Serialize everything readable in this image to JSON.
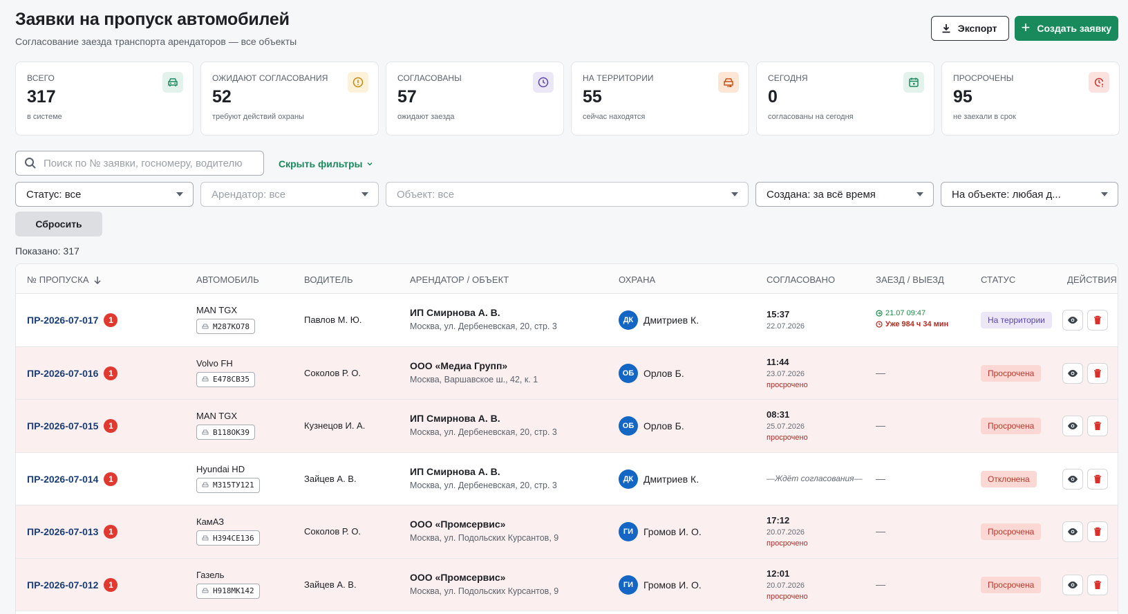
{
  "header": {
    "title": "Заявки на пропуск автомобилей",
    "subtitle": "Согласование заезда транспорта арендаторов — все объекты",
    "export_label": "Экспорт",
    "create_label": "Создать заявку"
  },
  "stats": [
    {
      "label": "Всего",
      "value": "317",
      "note": "в системе",
      "icon": "car-icon",
      "color": "#1d8a5c",
      "bg": "#e3f3ec"
    },
    {
      "label": "Ожидают согласования",
      "value": "52",
      "note": "требуют действий охраны",
      "icon": "alert-icon",
      "color": "#c48a12",
      "bg": "#fcf1d9"
    },
    {
      "label": "Согласованы",
      "value": "57",
      "note": "ожидают заезда",
      "icon": "clock-icon",
      "color": "#5a45a8",
      "bg": "#ebe7f7"
    },
    {
      "label": "На территории",
      "value": "55",
      "note": "сейчас находятся",
      "icon": "car-enter-icon",
      "color": "#c2551c",
      "bg": "#fde6d6"
    },
    {
      "label": "Сегодня",
      "value": "0",
      "note": "согласованы на сегодня",
      "icon": "calendar-icon",
      "color": "#1d8a5c",
      "bg": "#e3f3ec"
    },
    {
      "label": "Просрочены",
      "value": "95",
      "note": "не заехали в срок",
      "icon": "clock-alert-icon",
      "color": "#c2392c",
      "bg": "#fbe2df"
    }
  ],
  "search": {
    "placeholder": "Поиск по № заявки, госномеру, водителю"
  },
  "filters_toggle": "Скрыть фильтры",
  "filters": {
    "status": "Статус: все",
    "tenant": "Арендатор: все",
    "object": "Объект: все",
    "created": "Создана: за всё время",
    "onsite": "На объекте: любая д..."
  },
  "reset_label": "Сбросить",
  "shown_label": "Показано: 317",
  "columns": {
    "pass": "№ пропуска",
    "car": "Автомобиль",
    "driver": "Водитель",
    "tenant": "Арендатор / объект",
    "guard": "Охрана",
    "approved": "Согласовано",
    "inout": "Заезд / выезд",
    "status": "Статус",
    "actions": "Действия"
  },
  "rows": [
    {
      "id": "ПР-2026-07-017",
      "count": "1",
      "model": "MAN TGX",
      "plate": "М287КО78",
      "driver": "Павлов М. Ю.",
      "tenant": "ИП Смирнова А. В.",
      "address": "Москва, ул. Дербеневская, 20, стр. 3",
      "guard_initials": "ДК",
      "guard": "Дмитриев К.",
      "ap_time": "15:37",
      "ap_date": "22.07.2026",
      "ap_over": "",
      "ap_wait": "",
      "in": "21.07 09:47",
      "late": "Уже 984 ч 34 мин",
      "dash": "",
      "status": "На территории",
      "status_kind": "onsite",
      "warn": false
    },
    {
      "id": "ПР-2026-07-016",
      "count": "1",
      "model": "Volvo FH",
      "plate": "Е478СВ35",
      "driver": "Соколов Р. О.",
      "tenant": "ООО «Медиа Групп»",
      "address": "Москва, Варшавское ш., 42, к. 1",
      "guard_initials": "ОБ",
      "guard": "Орлов Б.",
      "ap_time": "11:44",
      "ap_date": "23.07.2026",
      "ap_over": "просрочено",
      "ap_wait": "",
      "in": "",
      "late": "",
      "dash": "—",
      "status": "Просрочена",
      "status_kind": "over",
      "warn": true
    },
    {
      "id": "ПР-2026-07-015",
      "count": "1",
      "model": "MAN TGX",
      "plate": "В118ОК39",
      "driver": "Кузнецов И. А.",
      "tenant": "ИП Смирнова А. В.",
      "address": "Москва, ул. Дербеневская, 20, стр. 3",
      "guard_initials": "ОБ",
      "guard": "Орлов Б.",
      "ap_time": "08:31",
      "ap_date": "25.07.2026",
      "ap_over": "просрочено",
      "ap_wait": "",
      "in": "",
      "late": "",
      "dash": "—",
      "status": "Просрочена",
      "status_kind": "over",
      "warn": true
    },
    {
      "id": "ПР-2026-07-014",
      "count": "1",
      "model": "Hyundai HD",
      "plate": "М315ТУ121",
      "driver": "Зайцев А. В.",
      "tenant": "ИП Смирнова А. В.",
      "address": "Москва, ул. Дербеневская, 20, стр. 3",
      "guard_initials": "ДК",
      "guard": "Дмитриев К.",
      "ap_time": "",
      "ap_date": "",
      "ap_over": "",
      "ap_wait": "—Ждёт согласования—",
      "in": "",
      "late": "",
      "dash": "—",
      "status": "Отклонена",
      "status_kind": "rej",
      "warn": false
    },
    {
      "id": "ПР-2026-07-013",
      "count": "1",
      "model": "КамАЗ",
      "plate": "Н394СЕ136",
      "driver": "Соколов Р. О.",
      "tenant": "ООО «Промсервис»",
      "address": "Москва, ул. Подольских Курсантов, 9",
      "guard_initials": "ГИ",
      "guard": "Громов И. О.",
      "ap_time": "17:12",
      "ap_date": "20.07.2026",
      "ap_over": "просрочено",
      "ap_wait": "",
      "in": "",
      "late": "",
      "dash": "—",
      "status": "Просрочена",
      "status_kind": "over",
      "warn": true
    },
    {
      "id": "ПР-2026-07-012",
      "count": "1",
      "model": "Газель",
      "plate": "Н918МК142",
      "driver": "Зайцев А. В.",
      "tenant": "ООО «Промсервис»",
      "address": "Москва, ул. Подольских Курсантов, 9",
      "guard_initials": "ГИ",
      "guard": "Громов И. О.",
      "ap_time": "12:01",
      "ap_date": "20.07.2026",
      "ap_over": "просрочено",
      "ap_wait": "",
      "in": "",
      "late": "",
      "dash": "—",
      "status": "Просрочена",
      "status_kind": "over",
      "warn": true
    }
  ]
}
